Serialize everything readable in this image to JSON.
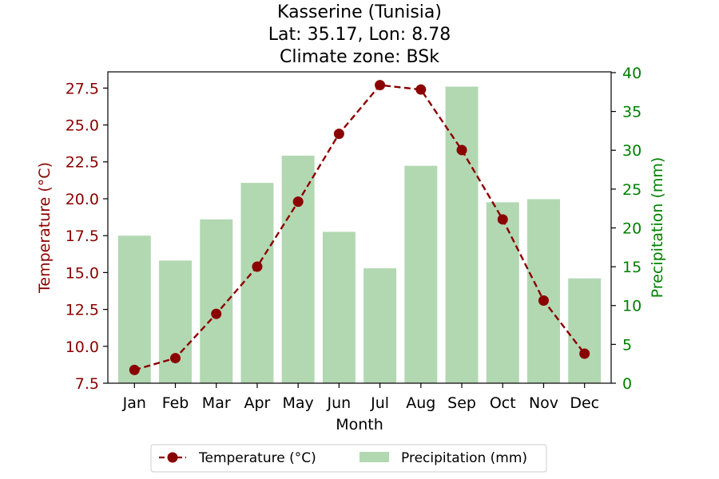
{
  "chart_data": {
    "type": "bar+line",
    "title_lines": [
      "Kasserine (Tunisia)",
      "Lat: 35.17, Lon: 8.78",
      "Climate zone: BSk"
    ],
    "xlabel": "Month",
    "categories": [
      "Jan",
      "Feb",
      "Mar",
      "Apr",
      "May",
      "Jun",
      "Jul",
      "Aug",
      "Sep",
      "Oct",
      "Nov",
      "Dec"
    ],
    "temperature": {
      "name": "Temperature (°C)",
      "axis_label": "Temperature (°C)",
      "values": [
        8.4,
        9.2,
        12.2,
        15.4,
        19.8,
        24.4,
        27.7,
        27.4,
        23.3,
        18.6,
        13.1,
        9.5
      ],
      "ylim": [
        7.5,
        28.6
      ],
      "ticks": [
        7.5,
        10.0,
        12.5,
        15.0,
        17.5,
        20.0,
        22.5,
        25.0,
        27.5
      ],
      "color": "#8b0000",
      "style": "dashed line with circle markers"
    },
    "precipitation": {
      "name": "Precipitation (mm)",
      "axis_label": "Precipitation (mm)",
      "values": [
        19.0,
        15.8,
        21.1,
        25.8,
        29.3,
        19.5,
        14.8,
        28.0,
        38.2,
        23.3,
        23.7,
        13.5
      ],
      "ylim": [
        0,
        40.1
      ],
      "ticks": [
        0,
        5,
        10,
        15,
        20,
        25,
        30,
        35,
        40
      ],
      "color": "#b2d8b2",
      "axis_color": "#008000"
    },
    "legend": {
      "placement": "bottom-center",
      "entries": [
        "Temperature (°C)",
        "Precipitation (mm)"
      ]
    }
  }
}
